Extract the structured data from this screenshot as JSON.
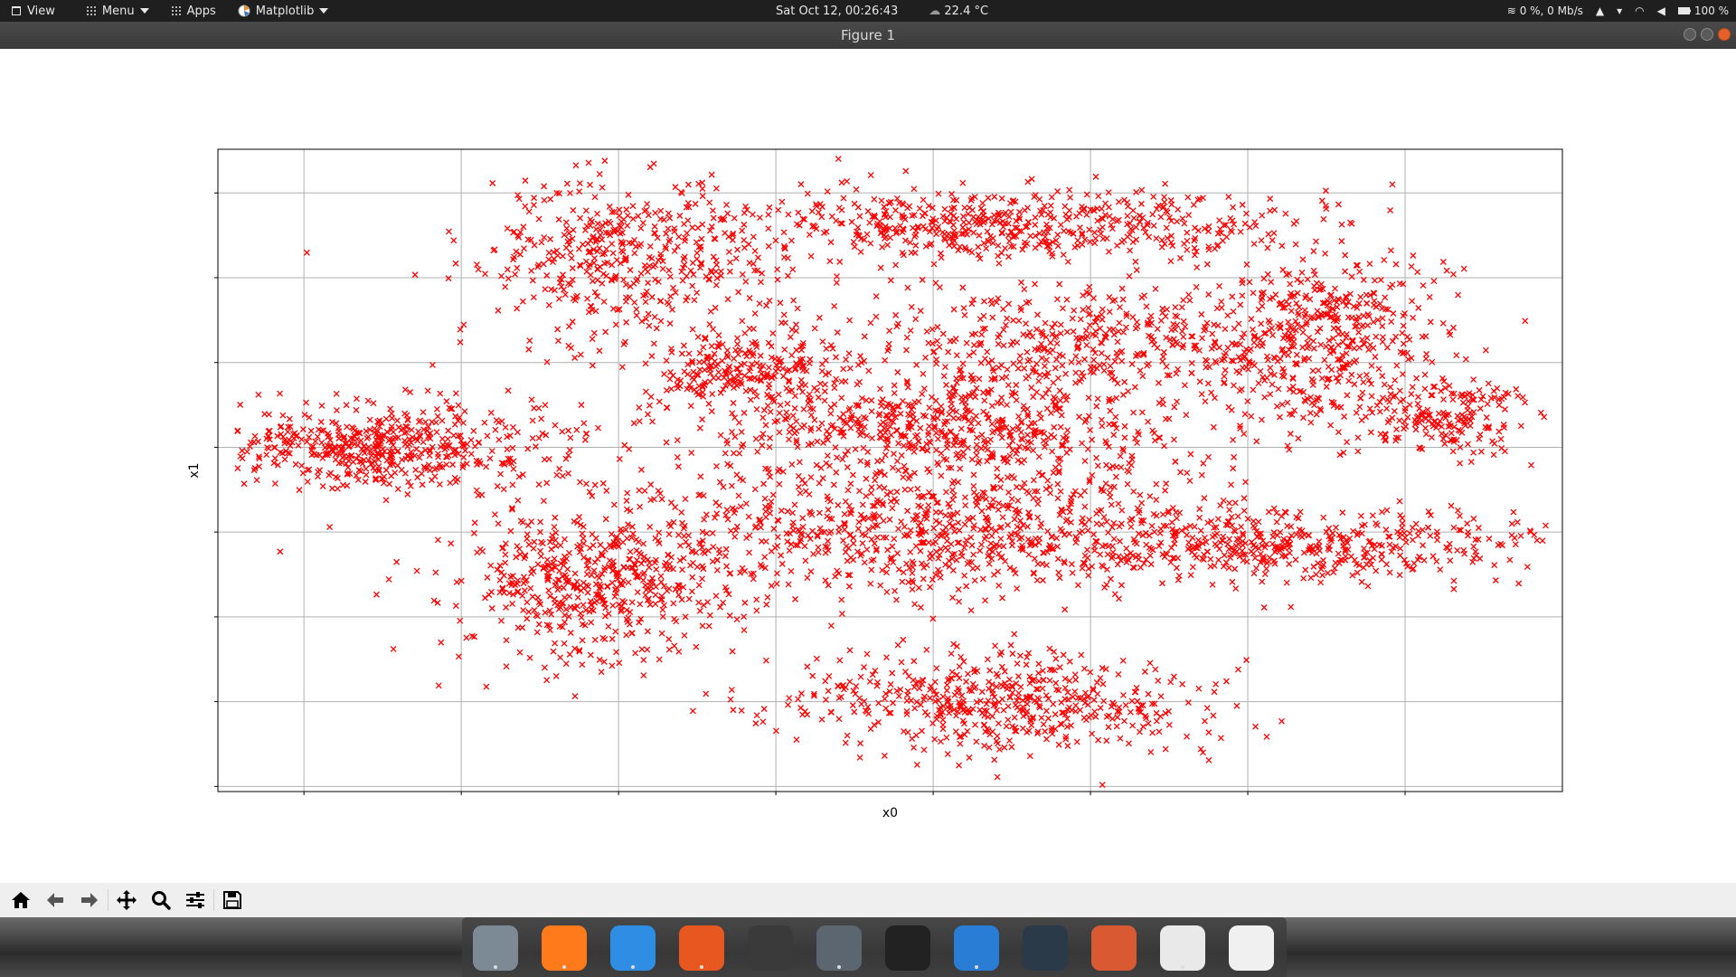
{
  "topbar": {
    "view_label": "View",
    "menu_label": "Menu",
    "apps_label": "Apps",
    "matplotlib_label": "Matplotlib",
    "datetime": "Sat Oct 12, 00:26:43",
    "temperature": "22.4 °C",
    "network": "0 %, 0 Mb/s",
    "battery": "100 %"
  },
  "window": {
    "title": "Figure 1"
  },
  "chart_data": {
    "type": "scatter",
    "xlabel": "x0",
    "ylabel": "x1",
    "marker": "x",
    "color": "#ff0000",
    "grid": true,
    "xlim": [
      0,
      1
    ],
    "ylim": [
      0,
      1
    ],
    "tick_labels_visible": false,
    "xticks": [
      0.064,
      0.181,
      0.298,
      0.415,
      0.532,
      0.649,
      0.766,
      0.883
    ],
    "yticks": [
      0.008,
      0.14,
      0.272,
      0.404,
      0.536,
      0.668,
      0.8,
      0.932
    ],
    "clusters": [
      {
        "cx": 0.12,
        "cy": 0.535,
        "sx": 0.065,
        "sy": 0.032,
        "n": 520,
        "note": "left horizontal band"
      },
      {
        "cx": 0.3,
        "cy": 0.835,
        "sx": 0.055,
        "sy": 0.06,
        "n": 420,
        "note": "upper-left blob"
      },
      {
        "cx": 0.39,
        "cy": 0.66,
        "sx": 0.035,
        "sy": 0.03,
        "n": 220,
        "note": "upper-left tail"
      },
      {
        "cx": 0.58,
        "cy": 0.885,
        "sx": 0.11,
        "sy": 0.028,
        "n": 560,
        "note": "top band"
      },
      {
        "cx": 0.655,
        "cy": 0.7,
        "sx": 0.09,
        "sy": 0.04,
        "n": 420,
        "note": "upper-right diagonal band"
      },
      {
        "cx": 0.82,
        "cy": 0.7,
        "sx": 0.05,
        "sy": 0.075,
        "n": 480,
        "note": "right blob"
      },
      {
        "cx": 0.92,
        "cy": 0.58,
        "sx": 0.03,
        "sy": 0.03,
        "n": 170,
        "note": "far right blob"
      },
      {
        "cx": 0.53,
        "cy": 0.565,
        "sx": 0.09,
        "sy": 0.045,
        "n": 650,
        "note": "center band"
      },
      {
        "cx": 0.56,
        "cy": 0.4,
        "sx": 0.11,
        "sy": 0.048,
        "n": 780,
        "note": "center lower band"
      },
      {
        "cx": 0.83,
        "cy": 0.38,
        "sx": 0.08,
        "sy": 0.025,
        "n": 380,
        "note": "right lower band"
      },
      {
        "cx": 0.28,
        "cy": 0.33,
        "sx": 0.055,
        "sy": 0.065,
        "n": 560,
        "note": "lower-left blob"
      },
      {
        "cx": 0.585,
        "cy": 0.14,
        "sx": 0.08,
        "sy": 0.04,
        "n": 520,
        "note": "bottom blob"
      },
      {
        "cx": 0.48,
        "cy": 0.6,
        "sx": 0.2,
        "sy": 0.15,
        "n": 140,
        "note": "scattered noise"
      }
    ]
  },
  "toolbar": {
    "tools": [
      "home-icon",
      "back-icon",
      "forward-icon",
      "pan-icon",
      "zoom-icon",
      "configure-icon",
      "save-icon"
    ]
  },
  "dock": {
    "apps": [
      {
        "name": "system-settings-icon",
        "color": "#7c8a96"
      },
      {
        "name": "firefox-icon",
        "color": "#ff7a1a"
      },
      {
        "name": "finder-icon",
        "color": "#2f8de4"
      },
      {
        "name": "gimp-icon",
        "color": "#e7571f"
      },
      {
        "name": "vlc-icon",
        "color": "#3a3a3a"
      },
      {
        "name": "settings-gear-icon",
        "color": "#5b6670"
      },
      {
        "name": "terminal-icon",
        "color": "#222222"
      },
      {
        "name": "vscode-icon",
        "color": "#2a7dd4"
      },
      {
        "name": "stacer-icon",
        "color": "#2b3a48"
      },
      {
        "name": "installer-icon",
        "color": "#d95a32"
      },
      {
        "name": "pinwheel-icon",
        "color": "#e9e9e9"
      },
      {
        "name": "network-app-icon",
        "color": "#f0f0f0"
      }
    ]
  }
}
